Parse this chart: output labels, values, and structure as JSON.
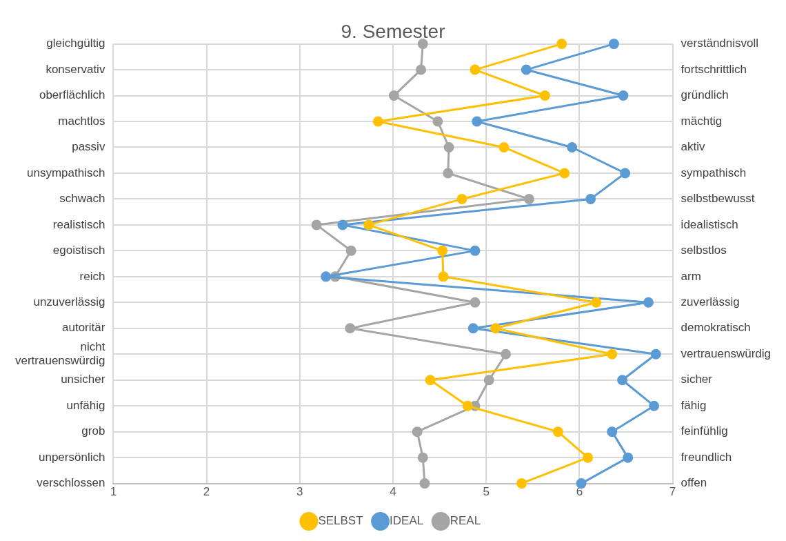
{
  "chart_data": {
    "type": "line",
    "orientation": "horizontal",
    "title": "9. Semester",
    "categories": [
      "gleichgültig",
      "konservativ",
      "oberflächlich",
      "machtlos",
      "passiv",
      "unsympathisch",
      "schwach",
      "realistisch",
      "egoistisch",
      "reich",
      "unzuverlässig",
      "autoritär",
      "nicht vertrauenswürdig",
      "unsicher",
      "unfähig",
      "grob",
      "unpersönlich",
      "verschlossen"
    ],
    "y2_categories": [
      "verständnisvoll",
      "fortschrittlich",
      "gründlich",
      "mächtig",
      "aktiv",
      "sympathisch",
      "selbstbewusst",
      "idealistisch",
      "selbstlos",
      "arm",
      "zuverlässig",
      "demokratisch",
      "vertrauenswürdig",
      "sicher",
      "fähig",
      "feinfühlig",
      "freundlich",
      "offen"
    ],
    "xlim": [
      1,
      7
    ],
    "xticks": [
      1,
      2,
      3,
      4,
      5,
      6,
      7
    ],
    "grid": true,
    "legend": "bottom",
    "marker": "circle",
    "series": [
      {
        "name": "SELBST",
        "color": "#ffc000",
        "values": [
          5.81,
          4.88,
          5.63,
          3.84,
          5.19,
          5.84,
          4.74,
          3.74,
          4.53,
          4.54,
          6.18,
          5.1,
          6.35,
          4.4,
          4.8,
          5.77,
          6.09,
          5.38
        ]
      },
      {
        "name": "IDEAL",
        "color": "#5b9bd5",
        "values": [
          6.37,
          5.43,
          6.47,
          4.9,
          5.92,
          6.49,
          6.12,
          3.46,
          4.88,
          3.28,
          6.74,
          4.86,
          6.82,
          6.46,
          6.8,
          6.35,
          6.52,
          6.02
        ]
      },
      {
        "name": "REAL",
        "color": "#a5a5a5",
        "values": [
          4.32,
          4.3,
          4.01,
          4.48,
          4.6,
          4.59,
          5.46,
          3.18,
          3.55,
          3.38,
          4.88,
          3.54,
          5.21,
          5.03,
          4.88,
          4.26,
          4.32,
          4.34
        ]
      }
    ]
  }
}
